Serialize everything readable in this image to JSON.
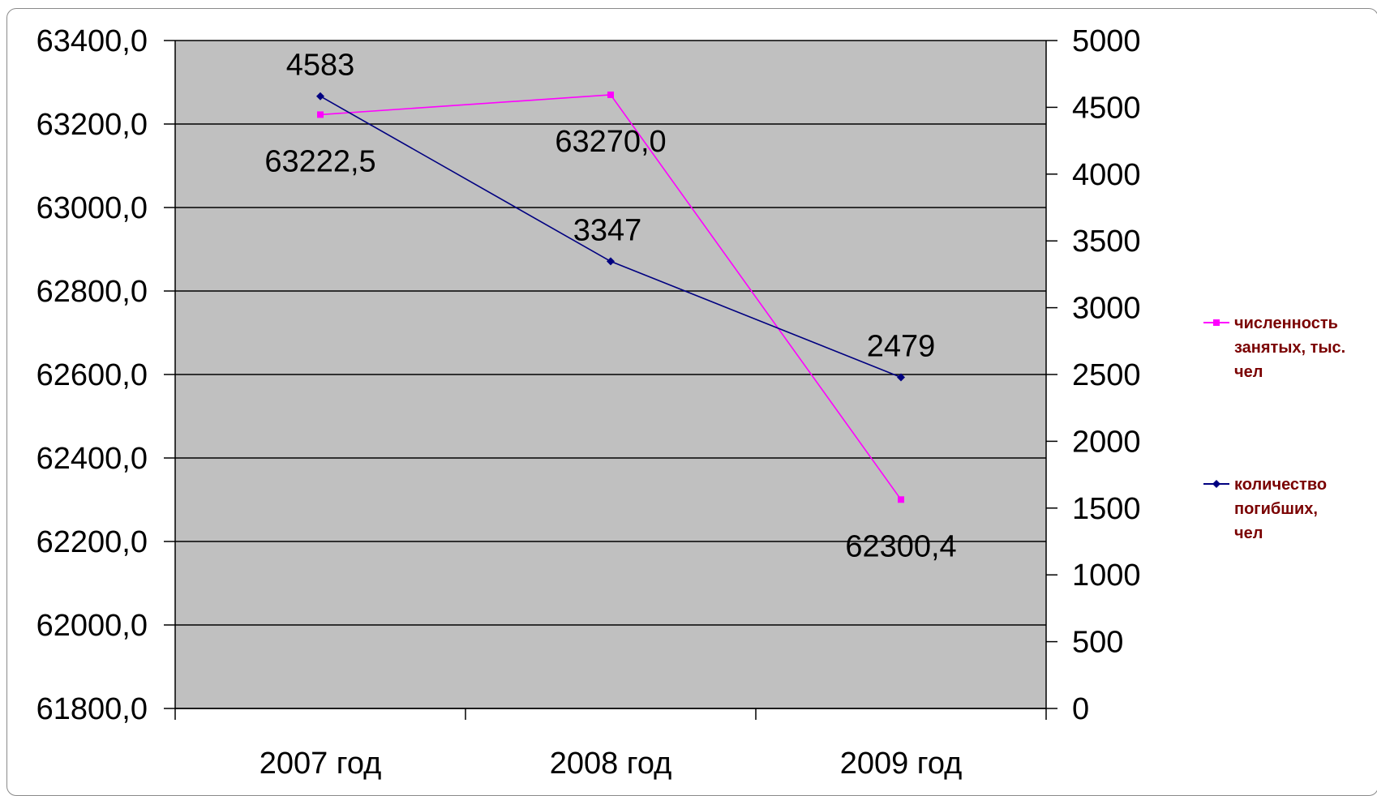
{
  "chart_data": {
    "type": "line",
    "categories": [
      "2007 год",
      "2008 год",
      "2009 год"
    ],
    "y_left": {
      "lim": [
        61800,
        63400
      ],
      "ticks": [
        "61800,0",
        "62000,0",
        "62200,0",
        "62400,0",
        "62600,0",
        "62800,0",
        "63000,0",
        "63200,0",
        "63400,0"
      ]
    },
    "y_right": {
      "lim": [
        0,
        5000
      ],
      "ticks": [
        "0",
        "500",
        "1000",
        "1500",
        "2000",
        "2500",
        "3000",
        "3500",
        "4000",
        "4500",
        "5000"
      ]
    },
    "grid": true,
    "legend_position": "right",
    "series": [
      {
        "name": "численность занятых, тыс. чел",
        "axis": "left",
        "values": [
          63222.5,
          63270.0,
          62300.4
        ],
        "labels": [
          "63222,5",
          "63270,0",
          "62300,4"
        ],
        "color": "#ff00ff",
        "marker": "square"
      },
      {
        "name": "количество погибших, чел",
        "axis": "right",
        "values": [
          4583,
          3347,
          2479
        ],
        "labels": [
          "4583",
          "3347",
          "2479"
        ],
        "color": "#000080",
        "marker": "diamond"
      }
    ],
    "colors": {
      "plot_background": "#c0c0c0",
      "gridline": "#000000",
      "legend_text": "#7a0000"
    }
  }
}
